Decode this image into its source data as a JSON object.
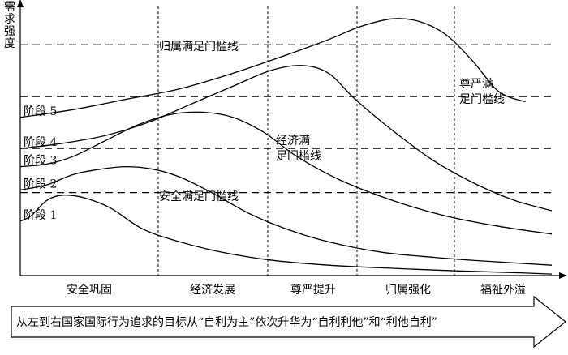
{
  "chart_data": {
    "type": "line",
    "ylabel": "需求强度",
    "xlabel": "",
    "title": "",
    "x_range": [
      0,
      1
    ],
    "y_range": [
      0,
      1
    ],
    "categories": [
      "安全巩固",
      "经济发展",
      "尊严提升",
      "归属强化",
      "福祉外溢"
    ],
    "series": [
      {
        "name": "阶段 1",
        "points": [
          [
            0.0,
            0.21
          ],
          [
            0.02,
            0.23
          ],
          [
            0.05,
            0.29
          ],
          [
            0.08,
            0.31
          ],
          [
            0.12,
            0.3
          ],
          [
            0.17,
            0.26
          ],
          [
            0.23,
            0.18
          ],
          [
            0.3,
            0.13
          ],
          [
            0.38,
            0.09
          ],
          [
            0.47,
            0.06
          ],
          [
            0.58,
            0.04
          ],
          [
            0.7,
            0.028
          ],
          [
            0.82,
            0.018
          ],
          [
            0.92,
            0.012
          ],
          [
            1.0,
            0.006
          ]
        ]
      },
      {
        "name": "阶段 2",
        "points": [
          [
            0.0,
            0.33
          ],
          [
            0.05,
            0.35
          ],
          [
            0.1,
            0.39
          ],
          [
            0.15,
            0.41
          ],
          [
            0.2,
            0.42
          ],
          [
            0.25,
            0.41
          ],
          [
            0.3,
            0.38
          ],
          [
            0.36,
            0.32
          ],
          [
            0.43,
            0.24
          ],
          [
            0.5,
            0.18
          ],
          [
            0.58,
            0.13
          ],
          [
            0.68,
            0.09
          ],
          [
            0.78,
            0.07
          ],
          [
            0.88,
            0.055
          ],
          [
            1.0,
            0.04
          ]
        ]
      },
      {
        "name": "阶段 3",
        "points": [
          [
            0.0,
            0.42
          ],
          [
            0.05,
            0.43
          ],
          [
            0.1,
            0.46
          ],
          [
            0.16,
            0.52
          ],
          [
            0.22,
            0.58
          ],
          [
            0.28,
            0.62
          ],
          [
            0.34,
            0.63
          ],
          [
            0.4,
            0.61
          ],
          [
            0.46,
            0.55
          ],
          [
            0.52,
            0.46
          ],
          [
            0.6,
            0.37
          ],
          [
            0.7,
            0.29
          ],
          [
            0.8,
            0.23
          ],
          [
            0.9,
            0.19
          ],
          [
            1.0,
            0.16
          ]
        ]
      },
      {
        "name": "阶段 4",
        "points": [
          [
            0.0,
            0.49
          ],
          [
            0.08,
            0.51
          ],
          [
            0.16,
            0.54
          ],
          [
            0.24,
            0.59
          ],
          [
            0.32,
            0.66
          ],
          [
            0.4,
            0.73
          ],
          [
            0.47,
            0.79
          ],
          [
            0.53,
            0.81
          ],
          [
            0.58,
            0.78
          ],
          [
            0.63,
            0.68
          ],
          [
            0.7,
            0.56
          ],
          [
            0.78,
            0.44
          ],
          [
            0.86,
            0.35
          ],
          [
            0.93,
            0.29
          ],
          [
            1.0,
            0.25
          ]
        ]
      },
      {
        "name": "阶段 5",
        "points": [
          [
            0.0,
            0.61
          ],
          [
            0.1,
            0.64
          ],
          [
            0.2,
            0.68
          ],
          [
            0.3,
            0.72
          ],
          [
            0.4,
            0.78
          ],
          [
            0.5,
            0.85
          ],
          [
            0.58,
            0.91
          ],
          [
            0.64,
            0.96
          ],
          [
            0.7,
            0.99
          ],
          [
            0.75,
            0.98
          ],
          [
            0.8,
            0.93
          ],
          [
            0.85,
            0.83
          ],
          [
            0.9,
            0.71
          ],
          [
            0.95,
            0.67
          ]
        ]
      }
    ],
    "thresholds": [
      {
        "name": "归属满足门槛线",
        "y": 0.89
      },
      {
        "name": "尊严满足门槛线",
        "y": 0.69
      },
      {
        "name": "经济满足门槛线",
        "y": 0.49
      },
      {
        "name": "安全满足门槛线",
        "y": 0.32
      }
    ],
    "annotations": [
      {
        "lines": [
          "归属满足门槛线"
        ]
      },
      {
        "lines": [
          "尊严满",
          "足门槛线"
        ]
      },
      {
        "lines": [
          "经济满",
          "足门槛线"
        ]
      },
      {
        "lines": [
          "安全满足门槛线"
        ]
      }
    ],
    "dividers": 4,
    "grid": false,
    "legend": "inline-left"
  },
  "arrow": {
    "text": "从左到右国家国际行为追求的目标从“自利为主”依次升华为“自利利他”和“利他自利”"
  },
  "colors": {
    "ink": "#000000",
    "background": "#ffffff"
  }
}
